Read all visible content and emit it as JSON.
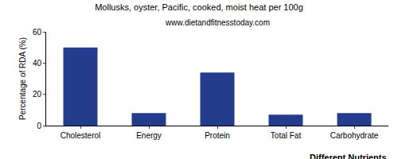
{
  "chart_data": {
    "type": "bar",
    "title": "Mollusks, oyster, Pacific, cooked, moist heat per 100g",
    "subtitle": "www.dietandfitnesstoday.com",
    "x_label": "Different Nutrients",
    "y_label": "Percentage of RDA (%)",
    "categories": [
      "Cholesterol",
      "Energy",
      "Protein",
      "Total Fat",
      "Carbohydrate"
    ],
    "values": [
      50,
      8,
      34,
      7,
      8
    ],
    "color": "#233c8c",
    "ylim": [
      0,
      60
    ],
    "yticks": [
      0,
      20,
      40,
      60
    ],
    "grid": false
  }
}
